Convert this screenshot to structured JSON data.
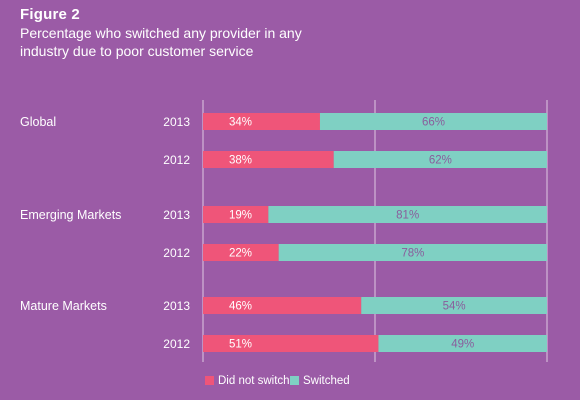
{
  "header": {
    "figure_label": "Figure 2",
    "title": "Percentage who switched any provider in any industry due to poor customer service"
  },
  "colors": {
    "background": "#9b5ba6",
    "did_not_switch": "#ef5579",
    "switched": "#7fd0c3",
    "gridline": "#ffffff",
    "label_on_red": "#ffffff",
    "label_on_teal": "#8a5d9c"
  },
  "chart_data": {
    "type": "bar",
    "orientation": "horizontal",
    "stacked": true,
    "grouping": "100% stacked",
    "xlim": [
      0,
      100
    ],
    "grid": "vertical lines at 0, 50, 100",
    "legend_position": "bottom",
    "groups": [
      {
        "name": "Global",
        "rows": [
          {
            "year": "2013",
            "did_not_switch": 34,
            "switched": 66,
            "labels": [
              "34%",
              "66%"
            ]
          },
          {
            "year": "2012",
            "did_not_switch": 38,
            "switched": 62,
            "labels": [
              "38%",
              "62%"
            ]
          }
        ]
      },
      {
        "name": "Emerging Markets",
        "rows": [
          {
            "year": "2013",
            "did_not_switch": 19,
            "switched": 81,
            "labels": [
              "19%",
              "81%"
            ]
          },
          {
            "year": "2012",
            "did_not_switch": 22,
            "switched": 78,
            "labels": [
              "22%",
              "78%"
            ]
          }
        ]
      },
      {
        "name": "Mature Markets",
        "rows": [
          {
            "year": "2013",
            "did_not_switch": 46,
            "switched": 54,
            "labels": [
              "46%",
              "54%"
            ]
          },
          {
            "year": "2012",
            "did_not_switch": 51,
            "switched": 49,
            "labels": [
              "51%",
              "49%"
            ]
          }
        ]
      }
    ],
    "series": [
      {
        "name": "Did not switch",
        "key": "did_not_switch"
      },
      {
        "name": "Switched",
        "key": "switched"
      }
    ]
  }
}
